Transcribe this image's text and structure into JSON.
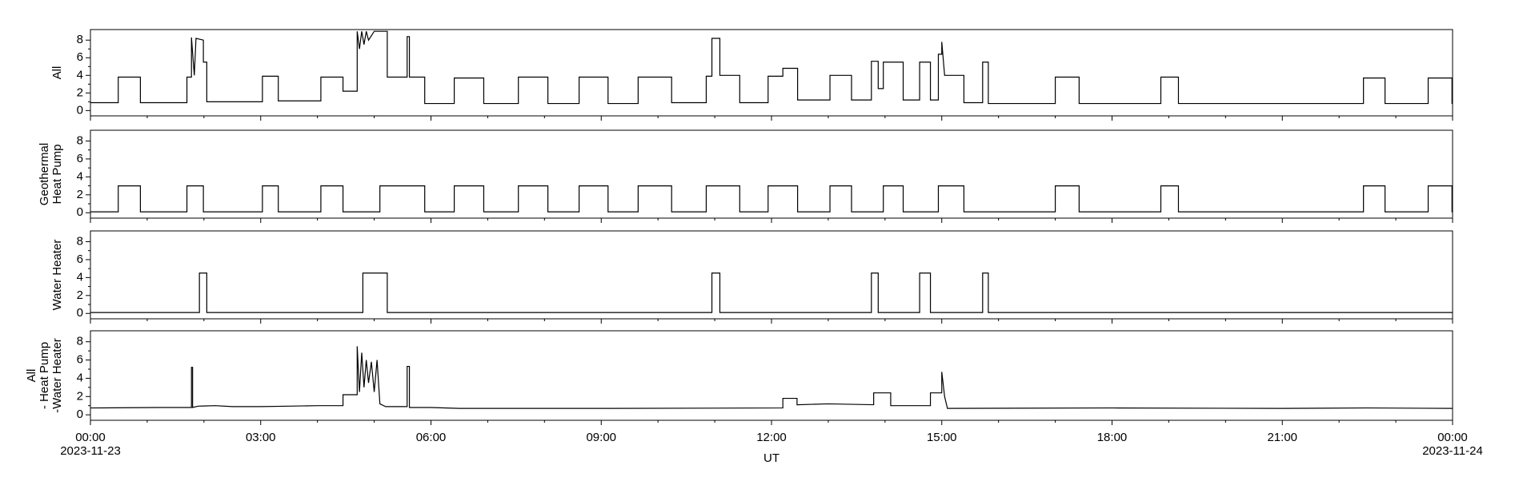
{
  "chart_data": [
    {
      "type": "line",
      "ylabel": [
        "All"
      ],
      "color": "#000000",
      "xlim": [
        0,
        24
      ],
      "ylim": [
        -0.6,
        9.2
      ],
      "yticks": [
        0,
        2,
        4,
        6,
        8
      ],
      "xticks": [
        0,
        3,
        6,
        9,
        12,
        15,
        18,
        21,
        24
      ],
      "x": [
        0,
        0.49,
        0.49,
        0.88,
        0.88,
        1.7,
        1.7,
        1.78,
        1.78,
        1.83,
        1.86,
        1.99,
        1.99,
        2.05,
        2.05,
        3.03,
        3.03,
        3.31,
        3.31,
        4.06,
        4.06,
        4.45,
        4.45,
        4.7,
        4.7,
        4.74,
        4.78,
        4.82,
        4.86,
        4.9,
        5.0,
        5.23,
        5.23,
        5.58,
        5.58,
        5.62,
        5.62,
        5.89,
        5.89,
        6.41,
        6.41,
        6.93,
        6.93,
        7.54,
        7.54,
        8.06,
        8.06,
        8.61,
        8.61,
        9.12,
        9.12,
        9.65,
        9.65,
        10.24,
        10.24,
        10.85,
        10.85,
        10.95,
        10.95,
        11.09,
        11.09,
        11.44,
        11.44,
        11.94,
        11.94,
        12.2,
        12.2,
        12.46,
        12.46,
        13.03,
        13.03,
        13.41,
        13.41,
        13.76,
        13.76,
        13.88,
        13.88,
        13.97,
        13.97,
        14.32,
        14.32,
        14.61,
        14.61,
        14.8,
        14.8,
        14.94,
        14.94,
        15.0,
        15.0,
        15.05,
        15.39,
        15.39,
        15.72,
        15.72,
        15.82,
        15.82,
        17.0,
        17.0,
        17.42,
        17.42,
        18.86,
        18.86,
        19.17,
        19.17,
        22.43,
        22.43,
        22.81,
        22.81,
        23.57,
        23.57,
        23.99,
        23.99,
        24
      ],
      "values": [
        0.9,
        0.9,
        3.8,
        3.8,
        0.9,
        0.9,
        3.8,
        3.8,
        8.3,
        4.0,
        8.2,
        8.0,
        5.5,
        5.5,
        1.0,
        1.0,
        3.9,
        3.9,
        1.1,
        1.1,
        3.8,
        3.8,
        2.2,
        2.2,
        9.0,
        7.0,
        9.0,
        7.5,
        9.0,
        8.0,
        9.0,
        9.0,
        3.8,
        3.8,
        8.4,
        8.4,
        3.8,
        3.8,
        0.8,
        0.8,
        3.7,
        3.7,
        0.8,
        0.8,
        3.8,
        3.8,
        0.8,
        0.8,
        3.8,
        3.8,
        0.8,
        0.8,
        3.8,
        3.8,
        0.9,
        0.9,
        3.9,
        3.9,
        8.2,
        8.2,
        4.0,
        4.0,
        0.9,
        0.9,
        3.9,
        3.9,
        4.8,
        4.8,
        1.2,
        1.2,
        4.0,
        4.0,
        1.2,
        1.2,
        5.6,
        5.6,
        2.5,
        2.5,
        5.5,
        5.5,
        1.2,
        1.2,
        5.5,
        5.5,
        1.2,
        1.2,
        6.4,
        6.4,
        7.8,
        4.0,
        4.0,
        0.9,
        0.9,
        5.5,
        5.5,
        0.8,
        0.8,
        3.8,
        3.8,
        0.8,
        0.8,
        3.8,
        3.8,
        0.8,
        0.8,
        3.7,
        3.7,
        0.8,
        0.8,
        3.7,
        3.7,
        0.8,
        0.8
      ]
    },
    {
      "type": "line",
      "ylabel": [
        "Geothermal",
        "Heat Pump"
      ],
      "color": "#000000",
      "xlim": [
        0,
        24
      ],
      "ylim": [
        -0.6,
        9.2
      ],
      "yticks": [
        0,
        2,
        4,
        6,
        8
      ],
      "xticks": [
        0,
        3,
        6,
        9,
        12,
        15,
        18,
        21,
        24
      ],
      "x": [
        0,
        0.49,
        0.49,
        0.88,
        0.88,
        1.7,
        1.7,
        1.99,
        1.99,
        3.03,
        3.03,
        3.31,
        3.31,
        4.06,
        4.06,
        4.45,
        4.45,
        5.1,
        5.1,
        5.89,
        5.89,
        6.41,
        6.41,
        6.93,
        6.93,
        7.54,
        7.54,
        8.06,
        8.06,
        8.61,
        8.61,
        9.12,
        9.12,
        9.65,
        9.65,
        10.24,
        10.24,
        10.85,
        10.85,
        11.44,
        11.44,
        11.94,
        11.94,
        12.46,
        12.46,
        13.03,
        13.03,
        13.41,
        13.41,
        13.97,
        13.97,
        14.32,
        14.32,
        14.94,
        14.94,
        15.39,
        15.39,
        17.0,
        17.0,
        17.42,
        17.42,
        18.86,
        18.86,
        19.17,
        19.17,
        22.43,
        22.43,
        22.81,
        22.81,
        23.57,
        23.57,
        23.99,
        23.99,
        24
      ],
      "values": [
        0.1,
        0.1,
        3,
        3,
        0.1,
        0.1,
        3,
        3,
        0.1,
        0.1,
        3,
        3,
        0.1,
        0.1,
        3,
        3,
        0.1,
        0.1,
        3,
        3,
        0.1,
        0.1,
        3,
        3,
        0.1,
        0.1,
        3,
        3,
        0.1,
        0.1,
        3,
        3,
        0.1,
        0.1,
        3,
        3,
        0.1,
        0.1,
        3,
        3,
        0.1,
        0.1,
        3,
        3,
        0.1,
        0.1,
        3,
        3,
        0.1,
        0.1,
        3,
        3,
        0.1,
        0.1,
        3,
        3,
        0.1,
        0.1,
        3,
        3,
        0.1,
        0.1,
        3,
        3,
        0.1,
        0.1,
        3,
        3,
        0.1,
        0.1,
        3,
        3,
        0.1,
        0.1
      ]
    },
    {
      "type": "line",
      "ylabel": [
        "Water Heater"
      ],
      "color": "#000000",
      "xlim": [
        0,
        24
      ],
      "ylim": [
        -0.6,
        9.2
      ],
      "yticks": [
        0,
        2,
        4,
        6,
        8
      ],
      "xticks": [
        0,
        3,
        6,
        9,
        12,
        15,
        18,
        21,
        24
      ],
      "x": [
        0,
        1.92,
        1.92,
        2.05,
        2.05,
        4.8,
        4.8,
        5.23,
        5.23,
        10.95,
        10.95,
        11.09,
        11.09,
        13.76,
        13.76,
        13.88,
        13.88,
        14.61,
        14.61,
        14.8,
        14.8,
        15.72,
        15.72,
        15.82,
        15.82,
        24
      ],
      "values": [
        0.1,
        0.1,
        4.5,
        4.5,
        0.1,
        0.1,
        4.5,
        4.5,
        0.1,
        0.1,
        4.5,
        4.5,
        0.1,
        0.1,
        4.5,
        4.5,
        0.1,
        0.1,
        4.5,
        4.5,
        0.1,
        0.1,
        4.5,
        4.5,
        0.1,
        0.1
      ]
    },
    {
      "type": "line",
      "ylabel": [
        "All",
        "- Heat Pump",
        "-Water Heater"
      ],
      "color": "#000000",
      "xlim": [
        0,
        24
      ],
      "ylim": [
        -0.6,
        9.2
      ],
      "yticks": [
        0,
        2,
        4,
        6,
        8
      ],
      "xticks": [
        {
          "value": 0,
          "label": "00:00"
        },
        {
          "value": 3,
          "label": "03:00"
        },
        {
          "value": 6,
          "label": "06:00"
        },
        {
          "value": 9,
          "label": "09:00"
        },
        {
          "value": 12,
          "label": "12:00"
        },
        {
          "value": 15,
          "label": "15:00"
        },
        {
          "value": 18,
          "label": "18:00"
        },
        {
          "value": 21,
          "label": "21:00"
        },
        {
          "value": 24,
          "label": "00:00"
        }
      ],
      "date_labels": [
        {
          "value": 0,
          "label": "2023-11-23"
        },
        {
          "value": 24,
          "label": "2023-11-24"
        }
      ],
      "xlabel": "UT",
      "x": [
        0,
        1.2,
        1.78,
        1.78,
        1.8,
        1.8,
        1.9,
        2.2,
        2.5,
        3.0,
        3.5,
        4.0,
        4.45,
        4.45,
        4.7,
        4.7,
        4.74,
        4.78,
        4.82,
        4.86,
        4.9,
        4.95,
        5.0,
        5.05,
        5.1,
        5.2,
        5.58,
        5.58,
        5.62,
        5.62,
        6.0,
        6.5,
        9.0,
        12.2,
        12.2,
        12.45,
        12.45,
        13.0,
        13.8,
        13.8,
        14.1,
        14.1,
        14.8,
        14.8,
        15.0,
        15.0,
        15.05,
        15.1,
        18.0,
        21.0,
        22.5,
        24
      ],
      "values": [
        0.75,
        0.8,
        0.8,
        5.2,
        5.2,
        0.8,
        0.95,
        1.0,
        0.9,
        0.9,
        0.95,
        1.0,
        1.0,
        2.2,
        2.2,
        7.5,
        2.5,
        6.8,
        3.0,
        6.0,
        3.5,
        5.8,
        2.5,
        6.0,
        1.2,
        0.9,
        0.9,
        5.3,
        5.3,
        0.8,
        0.8,
        0.7,
        0.7,
        0.75,
        1.8,
        1.8,
        1.1,
        1.2,
        1.1,
        2.4,
        2.4,
        1.0,
        1.0,
        2.4,
        2.4,
        4.7,
        2.0,
        0.7,
        0.75,
        0.7,
        0.75,
        0.7
      ]
    }
  ]
}
